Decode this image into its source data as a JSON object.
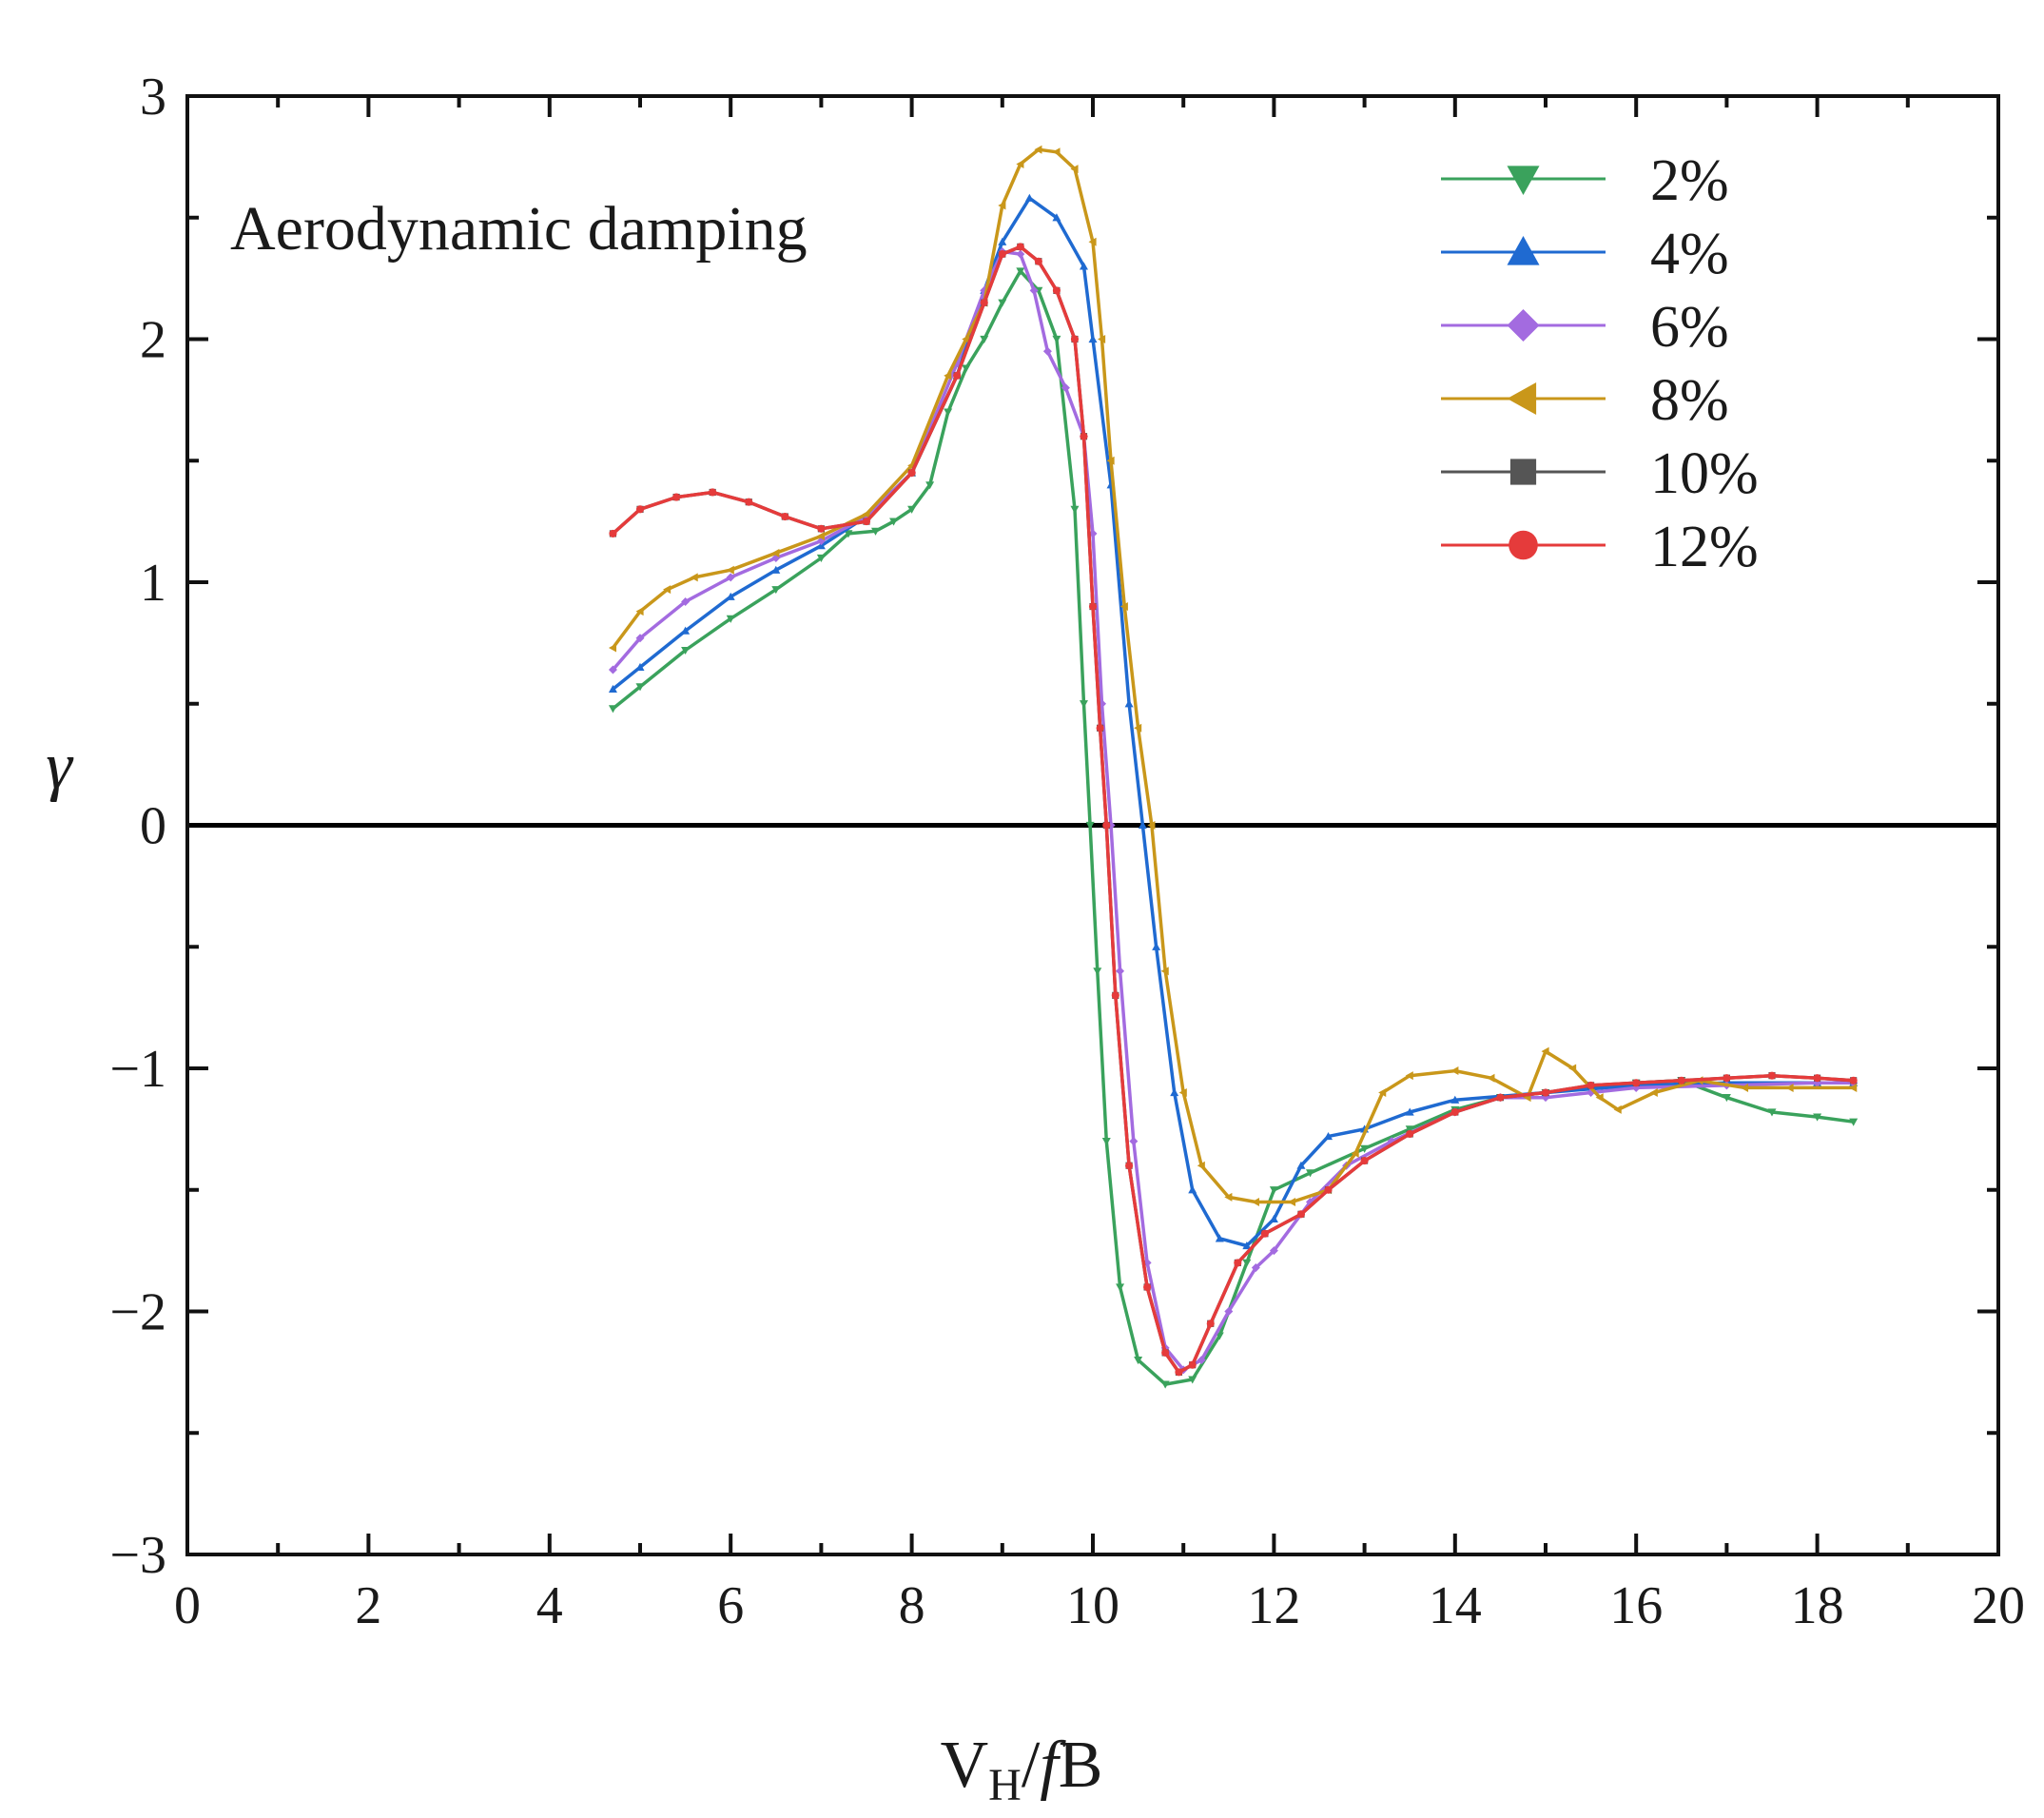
{
  "chart_data": {
    "type": "line",
    "annotation": "Aerodynamic damping",
    "xlabel": {
      "base": "V",
      "sub": "H",
      "rest": "/",
      "italic": "f",
      "tail": "B"
    },
    "ylabel": "γ",
    "xlim": [
      0,
      20
    ],
    "ylim": [
      -3,
      3
    ],
    "xticks": [
      0,
      2,
      4,
      6,
      8,
      10,
      12,
      14,
      16,
      18,
      20
    ],
    "yticks": [
      -3,
      -2,
      -1,
      0,
      1,
      2,
      3
    ],
    "x_tick_labels": [
      "0",
      "2",
      "4",
      "6",
      "8",
      "10",
      "12",
      "14",
      "16",
      "18",
      "20"
    ],
    "y_tick_labels": [
      "−3",
      "−2",
      "−1",
      "0",
      "1",
      "2",
      "3"
    ],
    "reference_line": 0,
    "legend_position": "top-right",
    "series": [
      {
        "name": "2%",
        "color": "#3aa25c",
        "marker": "triangle-down",
        "points": [
          [
            4.7,
            0.48
          ],
          [
            5.0,
            0.57
          ],
          [
            5.5,
            0.72
          ],
          [
            6.0,
            0.85
          ],
          [
            6.5,
            0.97
          ],
          [
            7.0,
            1.1
          ],
          [
            7.3,
            1.2
          ],
          [
            7.6,
            1.21
          ],
          [
            7.8,
            1.25
          ],
          [
            8.0,
            1.3
          ],
          [
            8.2,
            1.4
          ],
          [
            8.4,
            1.7
          ],
          [
            8.6,
            1.88
          ],
          [
            8.8,
            2.0
          ],
          [
            9.0,
            2.15
          ],
          [
            9.2,
            2.28
          ],
          [
            9.4,
            2.2
          ],
          [
            9.6,
            2.0
          ],
          [
            9.8,
            1.3
          ],
          [
            9.9,
            0.5
          ],
          [
            9.97,
            0.0
          ],
          [
            10.05,
            -0.6
          ],
          [
            10.15,
            -1.3
          ],
          [
            10.3,
            -1.9
          ],
          [
            10.5,
            -2.2
          ],
          [
            10.8,
            -2.3
          ],
          [
            11.1,
            -2.28
          ],
          [
            11.4,
            -2.1
          ],
          [
            11.7,
            -1.8
          ],
          [
            12.0,
            -1.5
          ],
          [
            12.4,
            -1.43
          ],
          [
            13.0,
            -1.33
          ],
          [
            13.5,
            -1.25
          ],
          [
            14.0,
            -1.17
          ],
          [
            14.5,
            -1.12
          ],
          [
            15.0,
            -1.1
          ],
          [
            15.5,
            -1.08
          ],
          [
            16.0,
            -1.06
          ],
          [
            16.5,
            -1.05
          ],
          [
            17.0,
            -1.12
          ],
          [
            17.5,
            -1.18
          ],
          [
            18.0,
            -1.2
          ],
          [
            18.4,
            -1.22
          ]
        ]
      },
      {
        "name": "4%",
        "color": "#1f6ad1",
        "marker": "triangle-up",
        "points": [
          [
            4.7,
            0.56
          ],
          [
            5.0,
            0.65
          ],
          [
            5.5,
            0.8
          ],
          [
            6.0,
            0.94
          ],
          [
            6.5,
            1.05
          ],
          [
            7.0,
            1.15
          ],
          [
            7.5,
            1.27
          ],
          [
            8.0,
            1.45
          ],
          [
            8.5,
            1.85
          ],
          [
            8.8,
            2.2
          ],
          [
            9.0,
            2.4
          ],
          [
            9.3,
            2.58
          ],
          [
            9.6,
            2.5
          ],
          [
            9.9,
            2.3
          ],
          [
            10.0,
            2.0
          ],
          [
            10.2,
            1.4
          ],
          [
            10.4,
            0.5
          ],
          [
            10.55,
            0.0
          ],
          [
            10.7,
            -0.5
          ],
          [
            10.9,
            -1.1
          ],
          [
            11.1,
            -1.5
          ],
          [
            11.4,
            -1.7
          ],
          [
            11.7,
            -1.73
          ],
          [
            12.0,
            -1.62
          ],
          [
            12.3,
            -1.4
          ],
          [
            12.6,
            -1.28
          ],
          [
            13.0,
            -1.25
          ],
          [
            13.5,
            -1.18
          ],
          [
            14.0,
            -1.13
          ],
          [
            15.0,
            -1.1
          ],
          [
            16.0,
            -1.07
          ],
          [
            17.0,
            -1.06
          ],
          [
            18.0,
            -1.06
          ],
          [
            18.4,
            -1.06
          ]
        ]
      },
      {
        "name": "6%",
        "color": "#a36be0",
        "marker": "diamond",
        "points": [
          [
            4.7,
            0.64
          ],
          [
            5.0,
            0.77
          ],
          [
            5.5,
            0.92
          ],
          [
            6.0,
            1.02
          ],
          [
            6.5,
            1.1
          ],
          [
            7.0,
            1.17
          ],
          [
            7.5,
            1.27
          ],
          [
            8.0,
            1.45
          ],
          [
            8.5,
            1.9
          ],
          [
            8.8,
            2.2
          ],
          [
            9.0,
            2.36
          ],
          [
            9.2,
            2.35
          ],
          [
            9.35,
            2.2
          ],
          [
            9.5,
            1.95
          ],
          [
            9.7,
            1.8
          ],
          [
            9.9,
            1.6
          ],
          [
            10.0,
            1.2
          ],
          [
            10.1,
            0.5
          ],
          [
            10.2,
            0.0
          ],
          [
            10.3,
            -0.6
          ],
          [
            10.45,
            -1.3
          ],
          [
            10.6,
            -1.8
          ],
          [
            10.8,
            -2.15
          ],
          [
            11.0,
            -2.24
          ],
          [
            11.2,
            -2.2
          ],
          [
            11.5,
            -2.0
          ],
          [
            11.8,
            -1.82
          ],
          [
            12.0,
            -1.75
          ],
          [
            12.4,
            -1.55
          ],
          [
            12.8,
            -1.4
          ],
          [
            13.3,
            -1.3
          ],
          [
            14.0,
            -1.18
          ],
          [
            14.5,
            -1.12
          ],
          [
            15.0,
            -1.12
          ],
          [
            15.5,
            -1.1
          ],
          [
            16.0,
            -1.08
          ],
          [
            17.0,
            -1.07
          ],
          [
            18.0,
            -1.06
          ],
          [
            18.4,
            -1.06
          ]
        ]
      },
      {
        "name": "8%",
        "color": "#c9971a",
        "marker": "triangle-left",
        "points": [
          [
            4.7,
            0.73
          ],
          [
            5.0,
            0.88
          ],
          [
            5.3,
            0.97
          ],
          [
            5.6,
            1.02
          ],
          [
            6.0,
            1.05
          ],
          [
            6.5,
            1.12
          ],
          [
            7.0,
            1.19
          ],
          [
            7.5,
            1.28
          ],
          [
            8.0,
            1.48
          ],
          [
            8.4,
            1.85
          ],
          [
            8.6,
            2.0
          ],
          [
            8.8,
            2.15
          ],
          [
            9.0,
            2.55
          ],
          [
            9.2,
            2.72
          ],
          [
            9.4,
            2.78
          ],
          [
            9.6,
            2.77
          ],
          [
            9.8,
            2.7
          ],
          [
            10.0,
            2.4
          ],
          [
            10.1,
            2.0
          ],
          [
            10.2,
            1.5
          ],
          [
            10.35,
            0.9
          ],
          [
            10.5,
            0.4
          ],
          [
            10.65,
            0.0
          ],
          [
            10.8,
            -0.6
          ],
          [
            11.0,
            -1.1
          ],
          [
            11.2,
            -1.4
          ],
          [
            11.5,
            -1.53
          ],
          [
            11.8,
            -1.55
          ],
          [
            12.2,
            -1.55
          ],
          [
            12.6,
            -1.5
          ],
          [
            12.9,
            -1.35
          ],
          [
            13.2,
            -1.1
          ],
          [
            13.5,
            -1.03
          ],
          [
            14.0,
            -1.01
          ],
          [
            14.4,
            -1.04
          ],
          [
            14.8,
            -1.12
          ],
          [
            15.0,
            -0.93
          ],
          [
            15.3,
            -1.0
          ],
          [
            15.6,
            -1.12
          ],
          [
            15.8,
            -1.17
          ],
          [
            16.2,
            -1.1
          ],
          [
            16.7,
            -1.05
          ],
          [
            17.2,
            -1.08
          ],
          [
            17.7,
            -1.08
          ],
          [
            18.4,
            -1.08
          ]
        ]
      },
      {
        "name": "10%",
        "color": "#555555",
        "marker": "square",
        "points": [
          [
            4.7,
            1.2
          ],
          [
            5.0,
            1.3
          ],
          [
            5.4,
            1.35
          ],
          [
            5.8,
            1.37
          ],
          [
            6.2,
            1.33
          ],
          [
            6.6,
            1.27
          ],
          [
            7.0,
            1.22
          ],
          [
            7.5,
            1.25
          ],
          [
            8.0,
            1.45
          ],
          [
            8.5,
            1.85
          ],
          [
            8.8,
            2.15
          ],
          [
            9.0,
            2.35
          ],
          [
            9.2,
            2.38
          ],
          [
            9.4,
            2.32
          ],
          [
            9.6,
            2.2
          ],
          [
            9.8,
            2.0
          ],
          [
            9.9,
            1.6
          ],
          [
            10.0,
            0.9
          ],
          [
            10.08,
            0.4
          ],
          [
            10.15,
            0.0
          ],
          [
            10.25,
            -0.7
          ],
          [
            10.4,
            -1.4
          ],
          [
            10.6,
            -1.9
          ],
          [
            10.8,
            -2.17
          ],
          [
            10.95,
            -2.25
          ],
          [
            11.1,
            -2.22
          ],
          [
            11.3,
            -2.05
          ],
          [
            11.6,
            -1.8
          ],
          [
            11.9,
            -1.68
          ],
          [
            12.3,
            -1.6
          ],
          [
            12.6,
            -1.5
          ],
          [
            13.0,
            -1.38
          ],
          [
            13.5,
            -1.27
          ],
          [
            14.0,
            -1.18
          ],
          [
            14.5,
            -1.12
          ],
          [
            15.0,
            -1.1
          ],
          [
            15.5,
            -1.07
          ],
          [
            16.0,
            -1.06
          ],
          [
            16.5,
            -1.05
          ],
          [
            17.0,
            -1.04
          ],
          [
            17.5,
            -1.03
          ],
          [
            18.0,
            -1.04
          ],
          [
            18.4,
            -1.05
          ]
        ]
      },
      {
        "name": "12%",
        "color": "#e53b3b",
        "marker": "circle",
        "points": [
          [
            4.7,
            1.2
          ],
          [
            5.0,
            1.3
          ],
          [
            5.4,
            1.35
          ],
          [
            5.8,
            1.37
          ],
          [
            6.2,
            1.33
          ],
          [
            6.6,
            1.27
          ],
          [
            7.0,
            1.22
          ],
          [
            7.5,
            1.25
          ],
          [
            8.0,
            1.45
          ],
          [
            8.5,
            1.85
          ],
          [
            8.8,
            2.15
          ],
          [
            9.0,
            2.35
          ],
          [
            9.2,
            2.38
          ],
          [
            9.4,
            2.32
          ],
          [
            9.6,
            2.2
          ],
          [
            9.8,
            2.0
          ],
          [
            9.9,
            1.6
          ],
          [
            10.0,
            0.9
          ],
          [
            10.08,
            0.4
          ],
          [
            10.15,
            0.0
          ],
          [
            10.25,
            -0.7
          ],
          [
            10.4,
            -1.4
          ],
          [
            10.6,
            -1.9
          ],
          [
            10.8,
            -2.17
          ],
          [
            10.95,
            -2.25
          ],
          [
            11.1,
            -2.22
          ],
          [
            11.3,
            -2.05
          ],
          [
            11.6,
            -1.8
          ],
          [
            11.9,
            -1.68
          ],
          [
            12.3,
            -1.6
          ],
          [
            12.6,
            -1.5
          ],
          [
            13.0,
            -1.38
          ],
          [
            13.5,
            -1.27
          ],
          [
            14.0,
            -1.18
          ],
          [
            14.5,
            -1.12
          ],
          [
            15.0,
            -1.1
          ],
          [
            15.5,
            -1.07
          ],
          [
            16.0,
            -1.06
          ],
          [
            16.5,
            -1.05
          ],
          [
            17.0,
            -1.04
          ],
          [
            17.5,
            -1.03
          ],
          [
            18.0,
            -1.04
          ],
          [
            18.4,
            -1.05
          ]
        ]
      }
    ]
  }
}
